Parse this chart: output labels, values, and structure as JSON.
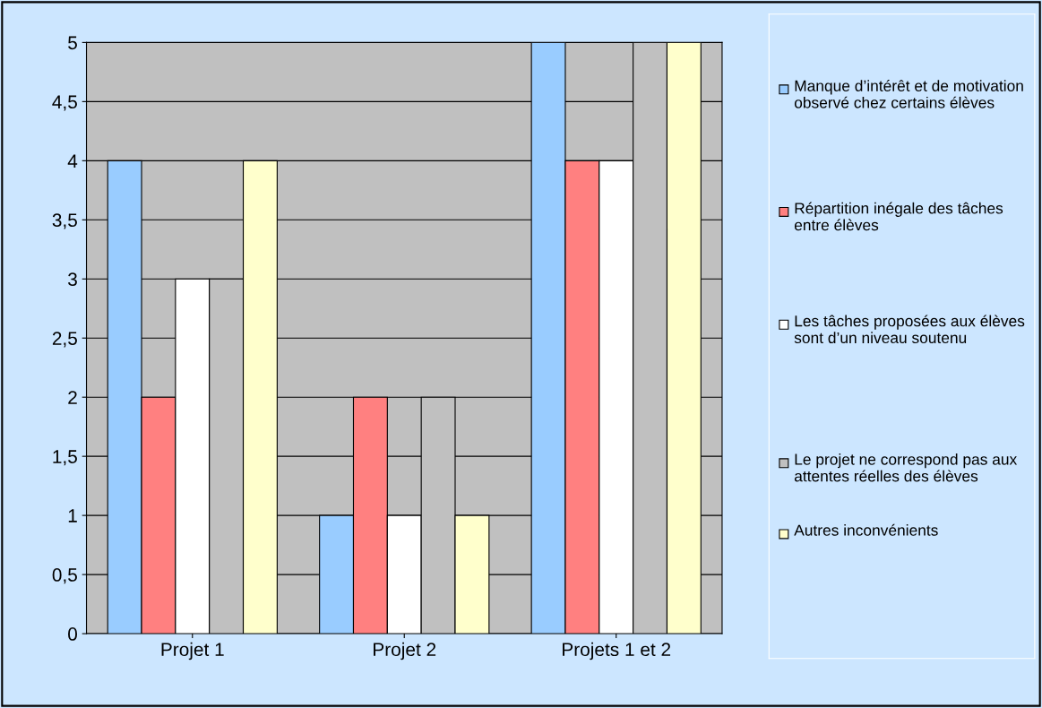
{
  "chart_data": {
    "type": "bar",
    "categories": [
      "Projet 1",
      "Projet 2",
      "Projets 1 et 2"
    ],
    "series": [
      {
        "name": "Manque d’intérêt et de motivation observé chez certains élèves",
        "color": "#99ccff",
        "values": [
          4,
          1,
          5
        ]
      },
      {
        "name": "Répartition inégale des tâches entre élèves",
        "color": "#ff8080",
        "values": [
          2,
          2,
          4
        ]
      },
      {
        "name": "Les tâches proposées aux élèves sont d’un niveau soutenu",
        "color": "#ffffff",
        "values": [
          3,
          1,
          4
        ]
      },
      {
        "name": "Le projet ne correspond pas aux attentes réelles des élèves",
        "color": "#c0c0c0",
        "values": [
          3,
          2,
          5
        ]
      },
      {
        "name": "Autres inconvénients",
        "color": "#ffffcc",
        "values": [
          4,
          1,
          5
        ]
      }
    ],
    "ylim": [
      0,
      5
    ],
    "yticks": [
      {
        "value": 0,
        "label": "0"
      },
      {
        "value": 0.5,
        "label": "0,5"
      },
      {
        "value": 1,
        "label": "1"
      },
      {
        "value": 1.5,
        "label": "1,5"
      },
      {
        "value": 2,
        "label": "2"
      },
      {
        "value": 2.5,
        "label": "2,5"
      },
      {
        "value": 3,
        "label": "3"
      },
      {
        "value": 3.5,
        "label": "3,5"
      },
      {
        "value": 4,
        "label": "4"
      },
      {
        "value": 4.5,
        "label": "4,5"
      },
      {
        "value": 5,
        "label": "5"
      }
    ],
    "grid": "y",
    "legend": "right"
  }
}
